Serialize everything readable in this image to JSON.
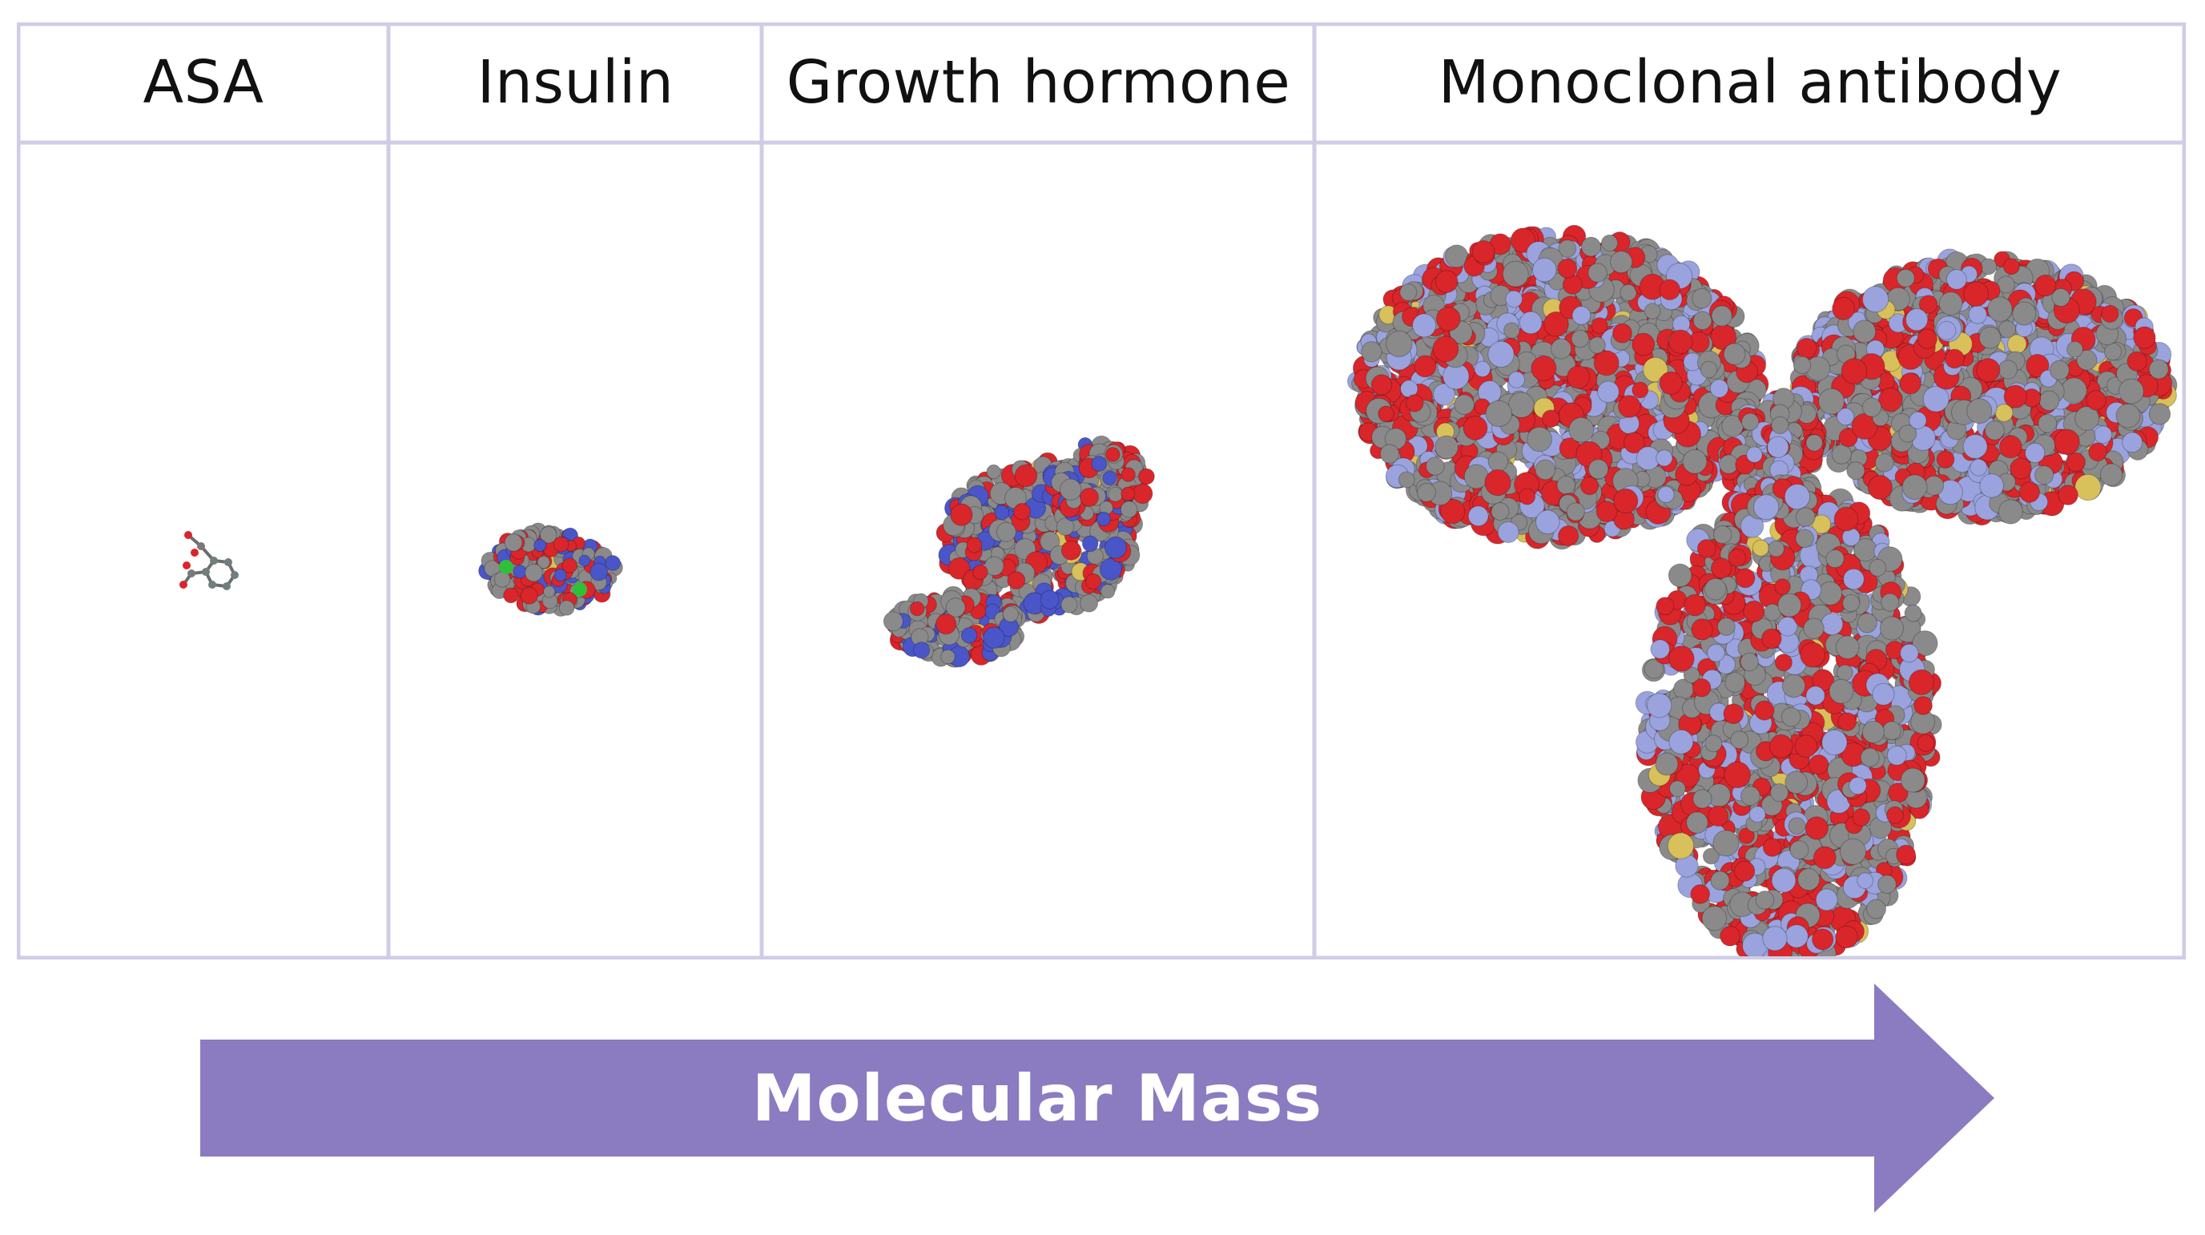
{
  "columns": [
    {
      "key": "asa",
      "label": "ASA"
    },
    {
      "key": "insulin",
      "label": "Insulin"
    },
    {
      "key": "growth-hormone",
      "label": "Growth hormone"
    },
    {
      "key": "monoclonal-antibody",
      "label": "Monoclonal antibody"
    }
  ],
  "arrow": {
    "label": "Molecular Mass"
  },
  "colors": {
    "grid_line": "#cfcde6",
    "arrow_fill": "#8b7bc0",
    "atom_oxygen": "#d9262b",
    "atom_carbon": "#8a8a8a",
    "atom_nitrogen": "#9aa3dd",
    "atom_sulfur": "#d8c05a",
    "atom_chlorine": "#2fbf3a"
  }
}
